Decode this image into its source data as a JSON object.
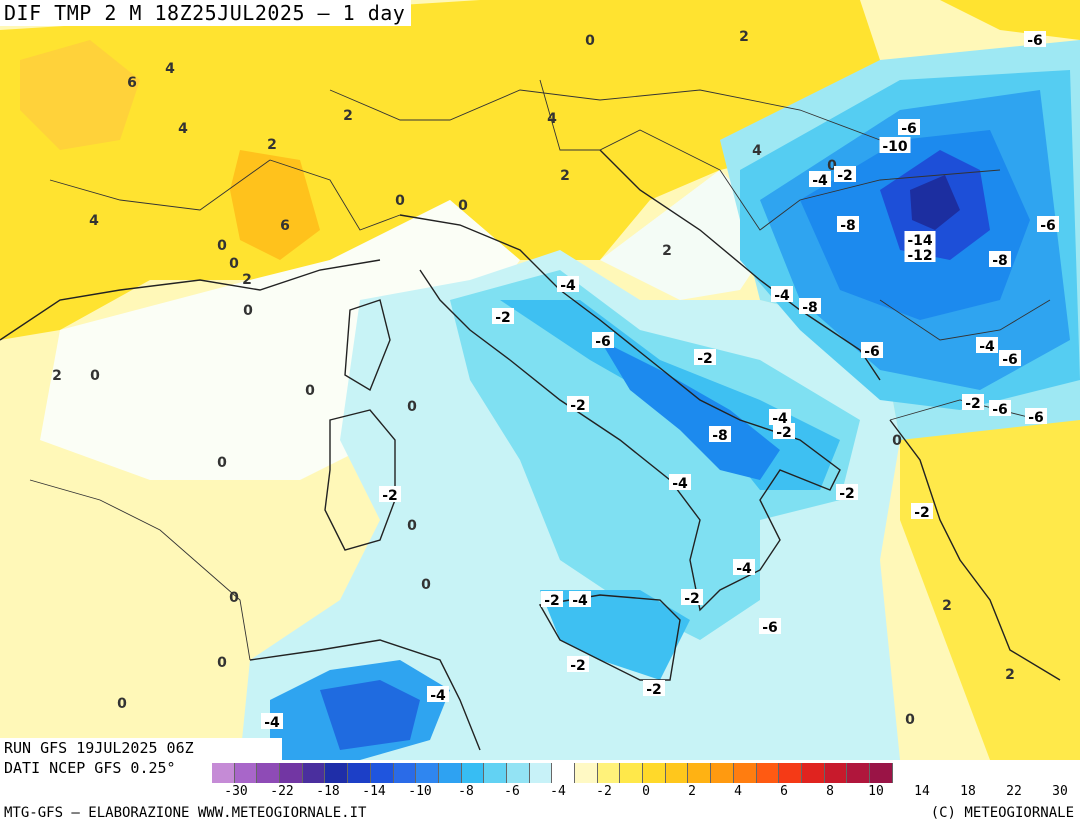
{
  "title": "DIF TMP 2 M 18Z25JUL2025 — 1 day",
  "run": {
    "line1": "RUN GFS 19JUL2025 06Z",
    "line2": "DATI NCEP GFS 0.25°"
  },
  "footer": {
    "left": "MTG-GFS — ELABORAZIONE WWW.METEOGIORNALE.IT",
    "right": "(C) METEOGIORNALE"
  },
  "scale": {
    "colors": [
      "#c58bd6",
      "#a866c9",
      "#8e4bb6",
      "#7236a3",
      "#4a2f9e",
      "#1f2ea8",
      "#1c3fc7",
      "#1f55de",
      "#2a6be8",
      "#2f86f0",
      "#2ea2f2",
      "#37bdf3",
      "#62d2f3",
      "#93e3f4",
      "#c8f2f8",
      "#ffffff",
      "#fff9c4",
      "#fff27a",
      "#ffe84a",
      "#ffd92a",
      "#ffc71c",
      "#ffb213",
      "#ff9a10",
      "#ff7d10",
      "#ff5a12",
      "#f53a16",
      "#e0231f",
      "#c81a2c",
      "#b0163c",
      "#9a1446"
    ],
    "ticks": [
      "-30",
      "-22",
      "-18",
      "-14",
      "-10",
      "-8",
      "-6",
      "-4",
      "-2",
      "0",
      "2",
      "4",
      "6",
      "8",
      "10",
      "14",
      "18",
      "22",
      "30"
    ]
  },
  "palette": {
    "pale_yellow": "#fff8b8",
    "yellow": "#ffe330",
    "orange": "#ffc21c",
    "white": "#fbfef6",
    "pale_cyan": "#c8f3f6",
    "cyan": "#7fe0f2",
    "light_blue": "#3ec0f2",
    "blue": "#1c8aee",
    "deep_blue": "#1d4fd8",
    "navy": "#1c2ea0"
  },
  "contour_labels": [
    "0",
    "2",
    "-6",
    "6",
    "4",
    "4",
    "2",
    "2",
    "-6",
    "-10",
    "4",
    "4",
    "0",
    "-2",
    "-4",
    "2",
    "0",
    "0",
    "-8",
    "-14",
    "-12",
    "-6",
    "4",
    "6",
    "2",
    "-8",
    "0",
    "0",
    "2",
    "0",
    "-4",
    "-2",
    "-4",
    "-8",
    "-6",
    "-6",
    "-4",
    "-6",
    "2",
    "0",
    "0",
    "-2",
    "0",
    "-2",
    "-6",
    "-2",
    "-4",
    "-2",
    "-8",
    "-6",
    "0",
    "0",
    "-4",
    "-2",
    "-2",
    "0",
    "-2",
    "0",
    "-4",
    "-2",
    "2",
    "0",
    "-2",
    "-4",
    "-6",
    "-2",
    "0",
    "-2",
    "-4",
    "2",
    "0",
    "-4",
    "0"
  ]
}
